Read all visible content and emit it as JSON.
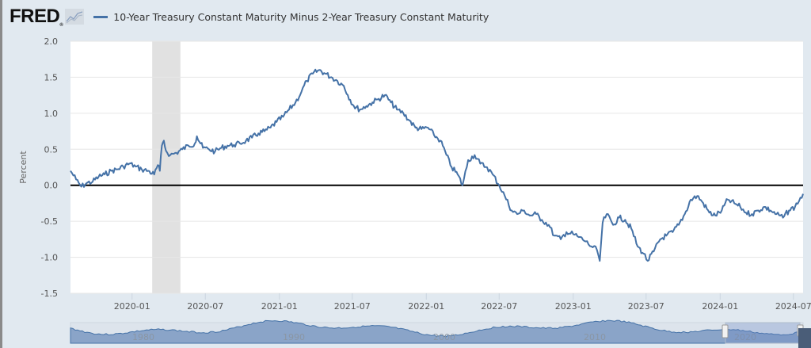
{
  "header": {
    "logo": "FRED",
    "logo_icon": "chart-icon",
    "legend_label": "10-Year Treasury Constant Maturity Minus 2-Year Treasury Constant Maturity",
    "series_color": "#4572a7"
  },
  "chart_data": {
    "type": "line",
    "title": "10-Year Treasury Constant Maturity Minus 2-Year Treasury Constant Maturity",
    "xlabel": "",
    "ylabel": "Percent",
    "ylim": [
      -1.5,
      2.0
    ],
    "yticks": [
      "2.0",
      "1.5",
      "1.0",
      "0.5",
      "0.0",
      "-0.5",
      "-1.0",
      "-1.5"
    ],
    "xticks": [
      "2020-01",
      "2020-07",
      "2021-01",
      "2021-07",
      "2022-01",
      "2022-07",
      "2023-01",
      "2023-07",
      "2024-01",
      "2024-07"
    ],
    "xrange": [
      "2019-08-01",
      "2024-07-25"
    ],
    "grid": true,
    "zero_line": true,
    "recession_band": {
      "start": "2020-02",
      "end": "2020-04"
    },
    "series": [
      {
        "name": "10-Year Treasury Constant Maturity Minus 2-Year Treasury Constant Maturity",
        "x": [
          "2019-08-01",
          "2019-08-15",
          "2019-08-28",
          "2019-09-10",
          "2019-09-25",
          "2019-10-10",
          "2019-10-25",
          "2019-11-10",
          "2019-11-25",
          "2019-12-10",
          "2019-12-25",
          "2020-01-10",
          "2020-01-25",
          "2020-02-10",
          "2020-02-25",
          "2020-03-05",
          "2020-03-10",
          "2020-03-15",
          "2020-03-20",
          "2020-03-25",
          "2020-04-05",
          "2020-04-20",
          "2020-05-05",
          "2020-05-20",
          "2020-06-05",
          "2020-06-10",
          "2020-06-25",
          "2020-07-10",
          "2020-07-25",
          "2020-08-10",
          "2020-08-25",
          "2020-09-10",
          "2020-09-25",
          "2020-10-10",
          "2020-10-25",
          "2020-11-10",
          "2020-11-25",
          "2020-12-10",
          "2020-12-25",
          "2021-01-10",
          "2021-01-25",
          "2021-02-10",
          "2021-02-25",
          "2021-03-10",
          "2021-03-25",
          "2021-04-10",
          "2021-04-25",
          "2021-05-10",
          "2021-05-25",
          "2021-06-10",
          "2021-06-20",
          "2021-07-05",
          "2021-07-20",
          "2021-08-05",
          "2021-08-20",
          "2021-09-05",
          "2021-09-20",
          "2021-10-05",
          "2021-10-20",
          "2021-11-05",
          "2021-11-20",
          "2021-12-05",
          "2021-12-20",
          "2022-01-05",
          "2022-01-20",
          "2022-02-05",
          "2022-02-20",
          "2022-03-05",
          "2022-03-20",
          "2022-04-01",
          "2022-04-15",
          "2022-05-01",
          "2022-05-15",
          "2022-06-01",
          "2022-06-15",
          "2022-07-01",
          "2022-07-15",
          "2022-08-01",
          "2022-08-15",
          "2022-09-01",
          "2022-09-15",
          "2022-10-01",
          "2022-10-15",
          "2022-11-01",
          "2022-11-15",
          "2022-12-01",
          "2022-12-15",
          "2023-01-01",
          "2023-01-15",
          "2023-02-01",
          "2023-02-15",
          "2023-03-01",
          "2023-03-08",
          "2023-03-15",
          "2023-03-25",
          "2023-04-10",
          "2023-04-25",
          "2023-05-10",
          "2023-05-25",
          "2023-06-10",
          "2023-06-25",
          "2023-07-05",
          "2023-07-20",
          "2023-08-05",
          "2023-08-20",
          "2023-09-05",
          "2023-09-20",
          "2023-10-05",
          "2023-10-20",
          "2023-11-05",
          "2023-11-20",
          "2023-12-05",
          "2023-12-20",
          "2024-01-05",
          "2024-01-20",
          "2024-02-05",
          "2024-02-20",
          "2024-03-05",
          "2024-03-20",
          "2024-04-05",
          "2024-04-20",
          "2024-05-05",
          "2024-05-20",
          "2024-06-05",
          "2024-06-20",
          "2024-07-05",
          "2024-07-25"
        ],
        "values": [
          0.2,
          0.08,
          -0.02,
          0.03,
          0.05,
          0.12,
          0.15,
          0.2,
          0.22,
          0.26,
          0.3,
          0.26,
          0.22,
          0.2,
          0.15,
          0.28,
          0.2,
          0.55,
          0.62,
          0.48,
          0.42,
          0.45,
          0.5,
          0.55,
          0.58,
          0.68,
          0.52,
          0.5,
          0.47,
          0.52,
          0.55,
          0.56,
          0.58,
          0.62,
          0.66,
          0.72,
          0.75,
          0.8,
          0.88,
          0.95,
          1.05,
          1.15,
          1.3,
          1.45,
          1.55,
          1.6,
          1.55,
          1.5,
          1.45,
          1.38,
          1.25,
          1.1,
          1.05,
          1.1,
          1.15,
          1.2,
          1.25,
          1.15,
          1.05,
          1.0,
          0.9,
          0.8,
          0.78,
          0.8,
          0.7,
          0.62,
          0.42,
          0.25,
          0.15,
          0.0,
          0.35,
          0.42,
          0.3,
          0.25,
          0.15,
          0.0,
          -0.15,
          -0.35,
          -0.4,
          -0.35,
          -0.42,
          -0.4,
          -0.48,
          -0.55,
          -0.7,
          -0.75,
          -0.65,
          -0.68,
          -0.72,
          -0.78,
          -0.85,
          -0.9,
          -1.05,
          -0.52,
          -0.4,
          -0.55,
          -0.45,
          -0.48,
          -0.6,
          -0.85,
          -0.95,
          -1.05,
          -0.92,
          -0.75,
          -0.7,
          -0.65,
          -0.55,
          -0.4,
          -0.2,
          -0.15,
          -0.25,
          -0.38,
          -0.42,
          -0.35,
          -0.2,
          -0.25,
          -0.3,
          -0.38,
          -0.4,
          -0.35,
          -0.3,
          -0.35,
          -0.4,
          -0.45,
          -0.35,
          -0.3,
          -0.12
        ]
      }
    ],
    "navigator": {
      "labels": [
        "1980",
        "1990",
        "2000",
        "2010",
        "2020"
      ],
      "selected_range": [
        "2019-08",
        "2024-07"
      ]
    }
  }
}
